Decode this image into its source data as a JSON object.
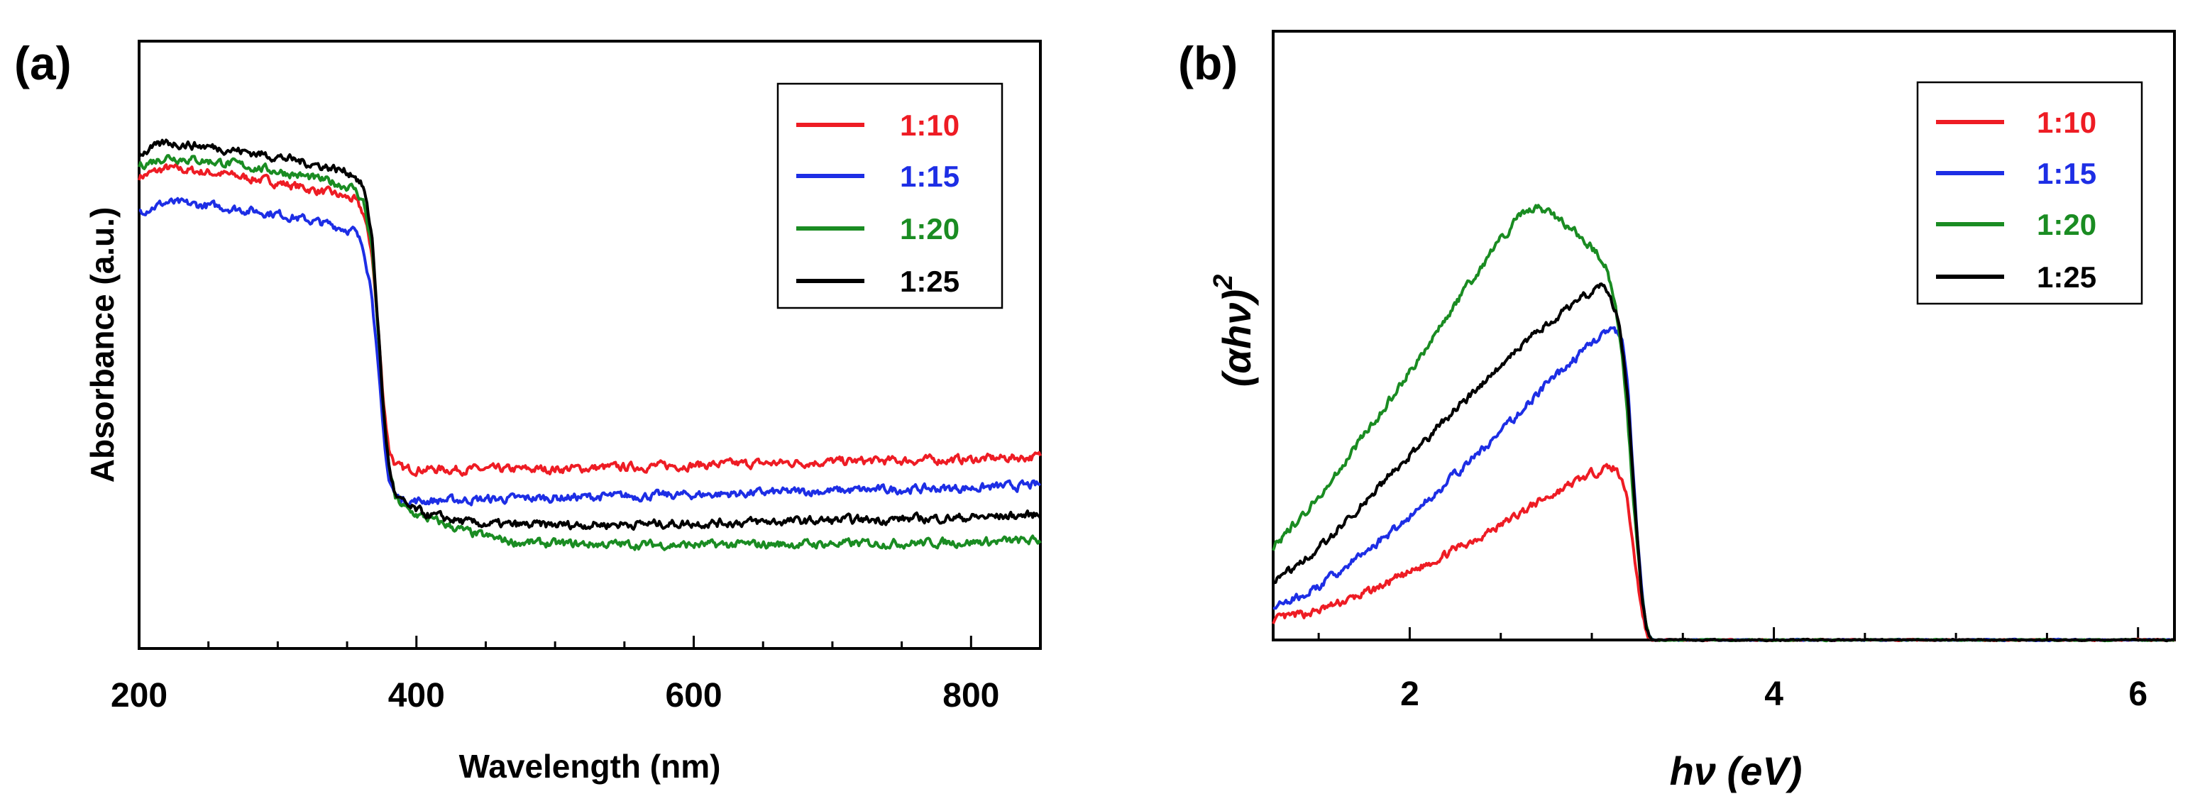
{
  "chart_data": [
    {
      "panel": "(a)",
      "type": "line",
      "xlabel": "Wavelength (nm)",
      "ylabel": "Absorbance (a.u.)",
      "xlim": [
        200,
        850
      ],
      "ylim": [
        0,
        1
      ],
      "x_ticks": [
        200,
        400,
        600,
        800
      ],
      "x_tick_labels": [
        "200",
        "400",
        "600",
        "800"
      ],
      "y_ticks_shown": false,
      "grid": false,
      "legend_position": "top-right",
      "series": [
        {
          "name": "1:10",
          "color": "#ee1c24",
          "x": [
            200,
            220,
            260,
            300,
            340,
            355,
            362,
            368,
            372,
            376,
            380,
            385,
            390,
            400,
            450,
            500,
            600,
            700,
            800,
            850
          ],
          "y": [
            0.805,
            0.82,
            0.81,
            0.795,
            0.775,
            0.765,
            0.74,
            0.67,
            0.55,
            0.42,
            0.33,
            0.3,
            0.293,
            0.293,
            0.292,
            0.293,
            0.3,
            0.306,
            0.31,
            0.315
          ]
        },
        {
          "name": "1:15",
          "color": "#1d2ee5",
          "x": [
            200,
            220,
            260,
            300,
            340,
            355,
            362,
            368,
            372,
            376,
            380,
            385,
            392,
            400,
            450,
            500,
            600,
            700,
            800,
            850
          ],
          "y": [
            0.745,
            0.76,
            0.752,
            0.74,
            0.72,
            0.71,
            0.68,
            0.6,
            0.48,
            0.36,
            0.275,
            0.245,
            0.237,
            0.237,
            0.24,
            0.243,
            0.248,
            0.255,
            0.26,
            0.265
          ]
        },
        {
          "name": "1:20",
          "color": "#1a8c22",
          "x": [
            200,
            220,
            260,
            300,
            340,
            355,
            362,
            368,
            372,
            376,
            380,
            385,
            395,
            410,
            440,
            470,
            500,
            600,
            700,
            800,
            850
          ],
          "y": [
            0.825,
            0.84,
            0.83,
            0.815,
            0.795,
            0.785,
            0.76,
            0.68,
            0.55,
            0.4,
            0.3,
            0.24,
            0.218,
            0.205,
            0.18,
            0.165,
            0.162,
            0.16,
            0.162,
            0.165,
            0.168
          ]
        },
        {
          "name": "1:25",
          "color": "#000000",
          "x": [
            200,
            220,
            260,
            300,
            340,
            355,
            362,
            368,
            372,
            376,
            380,
            385,
            395,
            410,
            440,
            470,
            500,
            600,
            700,
            800,
            850
          ],
          "y": [
            0.845,
            0.865,
            0.855,
            0.84,
            0.82,
            0.81,
            0.785,
            0.7,
            0.56,
            0.4,
            0.3,
            0.245,
            0.225,
            0.212,
            0.198,
            0.195,
            0.195,
            0.198,
            0.203,
            0.208,
            0.213
          ]
        }
      ]
    },
    {
      "panel": "(b)",
      "type": "line",
      "xlabel": "hν (eV)",
      "ylabel": "(αhν)",
      "ylabel_superscript": "2",
      "xlim": [
        1.25,
        6.2
      ],
      "ylim": [
        0,
        1
      ],
      "x_ticks": [
        2,
        4,
        6
      ],
      "x_tick_labels": [
        "2",
        "4",
        "6"
      ],
      "y_ticks_shown": false,
      "grid": false,
      "legend_position": "top-right",
      "series": [
        {
          "name": "1:10",
          "color": "#ee1c24",
          "x": [
            1.25,
            1.5,
            1.75,
            2.0,
            2.25,
            2.5,
            2.7,
            2.9,
            3.05,
            3.12,
            3.17,
            3.2,
            3.23,
            3.27,
            3.3,
            3.33,
            3.4,
            6.2
          ],
          "y": [
            0.035,
            0.052,
            0.082,
            0.12,
            0.162,
            0.205,
            0.245,
            0.28,
            0.305,
            0.308,
            0.29,
            0.24,
            0.16,
            0.06,
            0.012,
            0.0,
            0.0,
            0.0
          ]
        },
        {
          "name": "1:15",
          "color": "#1d2ee5",
          "x": [
            1.25,
            1.5,
            1.75,
            2.0,
            2.25,
            2.5,
            2.7,
            2.9,
            3.05,
            3.12,
            3.17,
            3.2,
            3.23,
            3.27,
            3.3,
            3.33,
            3.4,
            6.2
          ],
          "y": [
            0.055,
            0.095,
            0.155,
            0.22,
            0.295,
            0.37,
            0.44,
            0.5,
            0.545,
            0.555,
            0.53,
            0.44,
            0.28,
            0.1,
            0.018,
            0.0,
            0.0,
            0.0
          ]
        },
        {
          "name": "1:20",
          "color": "#1a8c22",
          "x": [
            1.25,
            1.5,
            1.75,
            2.0,
            2.25,
            2.5,
            2.6,
            2.7,
            2.8,
            2.9,
            3.0,
            3.08,
            3.13,
            3.17,
            3.2,
            3.23,
            3.27,
            3.3,
            3.33,
            3.4,
            6.2
          ],
          "y": [
            0.165,
            0.255,
            0.365,
            0.48,
            0.6,
            0.715,
            0.755,
            0.775,
            0.755,
            0.73,
            0.7,
            0.67,
            0.6,
            0.5,
            0.38,
            0.24,
            0.09,
            0.018,
            0.0,
            0.0,
            0.0
          ]
        },
        {
          "name": "1:25",
          "color": "#000000",
          "x": [
            1.25,
            1.5,
            1.75,
            2.0,
            2.25,
            2.5,
            2.7,
            2.9,
            3.05,
            3.1,
            3.15,
            3.2,
            3.23,
            3.27,
            3.3,
            3.33,
            3.4,
            6.2
          ],
          "y": [
            0.1,
            0.165,
            0.245,
            0.33,
            0.41,
            0.49,
            0.55,
            0.6,
            0.635,
            0.62,
            0.57,
            0.43,
            0.27,
            0.09,
            0.016,
            0.0,
            0.0,
            0.0
          ]
        }
      ]
    }
  ]
}
